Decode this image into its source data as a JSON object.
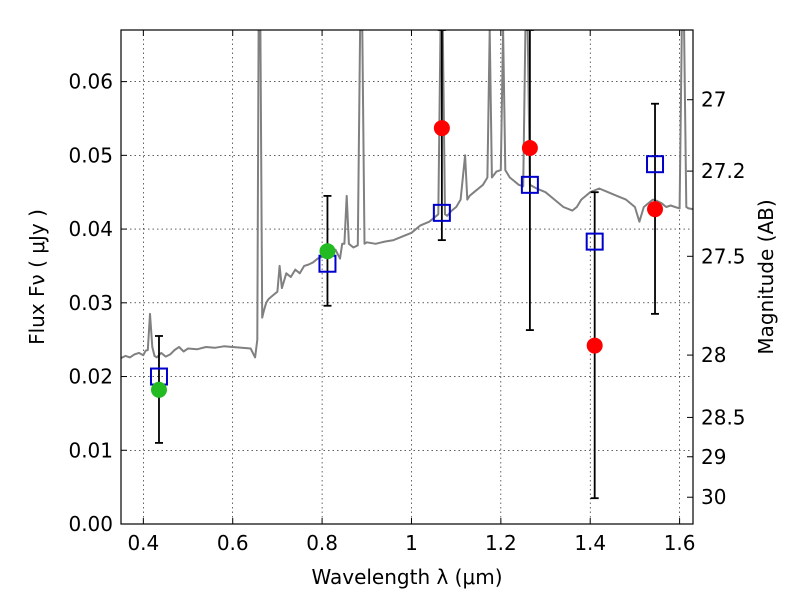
{
  "chart_data": {
    "type": "scatter",
    "xlabel": "Wavelength  λ (μm)",
    "ylabel": "Flux  Fν  ( μJy )",
    "ylabel_right": "Magnitude (AB)",
    "xlim": [
      0.35,
      1.63
    ],
    "ylim": [
      0.0,
      0.067
    ],
    "grid": true,
    "x_ticks": [
      {
        "value": 0.4,
        "label": "0.4"
      },
      {
        "value": 0.6,
        "label": "0.6"
      },
      {
        "value": 0.8,
        "label": "0.8"
      },
      {
        "value": 1.0,
        "label": "1"
      },
      {
        "value": 1.2,
        "label": "1.2"
      },
      {
        "value": 1.4,
        "label": "1.4"
      },
      {
        "value": 1.6,
        "label": "1.6"
      }
    ],
    "y_ticks": [
      {
        "value": 0.0,
        "label": "0.00"
      },
      {
        "value": 0.01,
        "label": "0.01"
      },
      {
        "value": 0.02,
        "label": "0.02"
      },
      {
        "value": 0.03,
        "label": "0.03"
      },
      {
        "value": 0.04,
        "label": "0.04"
      },
      {
        "value": 0.05,
        "label": "0.05"
      },
      {
        "value": 0.06,
        "label": "0.06"
      }
    ],
    "right_ticks": [
      {
        "mag": 27,
        "label": "27"
      },
      {
        "mag": 27.2,
        "label": "27.2"
      },
      {
        "mag": 27.5,
        "label": "27.5"
      },
      {
        "mag": 28,
        "label": "28"
      },
      {
        "mag": 28.5,
        "label": "28.5"
      },
      {
        "mag": 29,
        "label": "29"
      },
      {
        "mag": 30,
        "label": "30"
      }
    ],
    "colors": {
      "spectrum": "#808080",
      "model": "#0000cc",
      "observed_red": "#ff0000",
      "observed_green": "#22bb22",
      "errorbar": "#000000"
    },
    "spectrum": [
      [
        0.35,
        0.0225
      ],
      [
        0.36,
        0.0228
      ],
      [
        0.37,
        0.0226
      ],
      [
        0.38,
        0.023
      ],
      [
        0.39,
        0.0232
      ],
      [
        0.4,
        0.0229
      ],
      [
        0.405,
        0.0235
      ],
      [
        0.41,
        0.0236
      ],
      [
        0.415,
        0.0285
      ],
      [
        0.42,
        0.024
      ],
      [
        0.425,
        0.0228
      ],
      [
        0.43,
        0.0226
      ],
      [
        0.44,
        0.0232
      ],
      [
        0.45,
        0.0227
      ],
      [
        0.46,
        0.023
      ],
      [
        0.47,
        0.0236
      ],
      [
        0.48,
        0.024
      ],
      [
        0.49,
        0.0234
      ],
      [
        0.5,
        0.0238
      ],
      [
        0.52,
        0.0237
      ],
      [
        0.54,
        0.024
      ],
      [
        0.56,
        0.0239
      ],
      [
        0.58,
        0.0241
      ],
      [
        0.6,
        0.024
      ],
      [
        0.62,
        0.0239
      ],
      [
        0.64,
        0.0238
      ],
      [
        0.65,
        0.0226
      ],
      [
        0.655,
        0.025
      ],
      [
        0.658,
        0.067
      ],
      [
        0.662,
        0.067
      ],
      [
        0.666,
        0.028
      ],
      [
        0.67,
        0.029
      ],
      [
        0.675,
        0.03
      ],
      [
        0.68,
        0.0305
      ],
      [
        0.69,
        0.031
      ],
      [
        0.7,
        0.0315
      ],
      [
        0.705,
        0.035
      ],
      [
        0.71,
        0.032
      ],
      [
        0.715,
        0.033
      ],
      [
        0.72,
        0.034
      ],
      [
        0.73,
        0.0335
      ],
      [
        0.74,
        0.0345
      ],
      [
        0.75,
        0.034
      ],
      [
        0.76,
        0.035
      ],
      [
        0.77,
        0.0352
      ],
      [
        0.78,
        0.0355
      ],
      [
        0.79,
        0.036
      ],
      [
        0.8,
        0.0362
      ],
      [
        0.81,
        0.0365
      ],
      [
        0.82,
        0.0368
      ],
      [
        0.83,
        0.0372
      ],
      [
        0.84,
        0.036
      ],
      [
        0.845,
        0.038
      ],
      [
        0.85,
        0.038
      ],
      [
        0.855,
        0.0445
      ],
      [
        0.86,
        0.038
      ],
      [
        0.87,
        0.0375
      ],
      [
        0.88,
        0.0378
      ],
      [
        0.885,
        0.067
      ],
      [
        0.89,
        0.067
      ],
      [
        0.895,
        0.038
      ],
      [
        0.9,
        0.0382
      ],
      [
        0.92,
        0.038
      ],
      [
        0.94,
        0.0383
      ],
      [
        0.96,
        0.0385
      ],
      [
        0.98,
        0.039
      ],
      [
        1.0,
        0.0395
      ],
      [
        1.02,
        0.0405
      ],
      [
        1.04,
        0.041
      ],
      [
        1.05,
        0.0415
      ],
      [
        1.06,
        0.042
      ],
      [
        1.065,
        0.067
      ],
      [
        1.07,
        0.067
      ],
      [
        1.075,
        0.042
      ],
      [
        1.08,
        0.0418
      ],
      [
        1.09,
        0.0425
      ],
      [
        1.1,
        0.043
      ],
      [
        1.11,
        0.044
      ],
      [
        1.12,
        0.05
      ],
      [
        1.125,
        0.044
      ],
      [
        1.13,
        0.0445
      ],
      [
        1.14,
        0.045
      ],
      [
        1.15,
        0.0455
      ],
      [
        1.16,
        0.046
      ],
      [
        1.17,
        0.047
      ],
      [
        1.175,
        0.067
      ],
      [
        1.18,
        0.047
      ],
      [
        1.19,
        0.0478
      ],
      [
        1.2,
        0.048
      ],
      [
        1.205,
        0.067
      ],
      [
        1.21,
        0.048
      ],
      [
        1.22,
        0.047
      ],
      [
        1.23,
        0.0465
      ],
      [
        1.24,
        0.046
      ],
      [
        1.25,
        0.0458
      ],
      [
        1.255,
        0.067
      ],
      [
        1.26,
        0.067
      ],
      [
        1.265,
        0.046
      ],
      [
        1.28,
        0.0455
      ],
      [
        1.3,
        0.045
      ],
      [
        1.32,
        0.044
      ],
      [
        1.34,
        0.043
      ],
      [
        1.36,
        0.0425
      ],
      [
        1.37,
        0.043
      ],
      [
        1.38,
        0.044
      ],
      [
        1.39,
        0.0445
      ],
      [
        1.4,
        0.045
      ],
      [
        1.42,
        0.0455
      ],
      [
        1.44,
        0.045
      ],
      [
        1.46,
        0.0445
      ],
      [
        1.48,
        0.044
      ],
      [
        1.5,
        0.043
      ],
      [
        1.51,
        0.041
      ],
      [
        1.52,
        0.043
      ],
      [
        1.53,
        0.0435
      ],
      [
        1.54,
        0.044
      ],
      [
        1.55,
        0.0438
      ],
      [
        1.56,
        0.0435
      ],
      [
        1.57,
        0.043
      ],
      [
        1.58,
        0.0432
      ],
      [
        1.59,
        0.043
      ],
      [
        1.6,
        0.0428
      ],
      [
        1.605,
        0.067
      ],
      [
        1.61,
        0.067
      ],
      [
        1.615,
        0.043
      ],
      [
        1.62,
        0.0428
      ],
      [
        1.63,
        0.0427
      ]
    ],
    "model_points": [
      {
        "x": 0.435,
        "y": 0.02
      },
      {
        "x": 0.812,
        "y": 0.0353
      },
      {
        "x": 1.068,
        "y": 0.0422
      },
      {
        "x": 1.265,
        "y": 0.046
      },
      {
        "x": 1.41,
        "y": 0.0383
      },
      {
        "x": 1.545,
        "y": 0.0488
      }
    ],
    "observed_points": [
      {
        "x": 0.435,
        "y": 0.0182,
        "err_low": 0.011,
        "err_high": 0.0255,
        "color": "green"
      },
      {
        "x": 0.812,
        "y": 0.037,
        "err_low": 0.0296,
        "err_high": 0.0445,
        "color": "green"
      },
      {
        "x": 1.068,
        "y": 0.0537,
        "err_low": 0.0385,
        "err_high": 0.067,
        "color": "red"
      },
      {
        "x": 1.265,
        "y": 0.051,
        "err_low": 0.0263,
        "err_high": 0.067,
        "color": "red"
      },
      {
        "x": 1.41,
        "y": 0.0242,
        "err_low": 0.0035,
        "err_high": 0.045,
        "color": "red"
      },
      {
        "x": 1.545,
        "y": 0.0427,
        "err_low": 0.0285,
        "err_high": 0.057,
        "color": "red"
      }
    ]
  }
}
